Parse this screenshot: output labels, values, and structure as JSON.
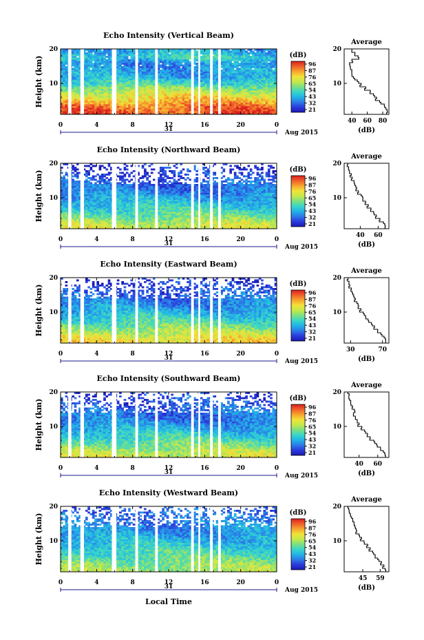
{
  "figure": {
    "xlabel": "Local Time",
    "date_label": "Aug 2015",
    "day_label": "31",
    "colorbar_unit": "(dB)",
    "colorbar_ticks": [
      "96",
      "87",
      "76",
      "65",
      "54",
      "43",
      "32",
      "21"
    ],
    "colormap": [
      "#1a1ab4",
      "#2a3bdc",
      "#2c7be6",
      "#22b3e8",
      "#39d6c8",
      "#7be082",
      "#c6e84a",
      "#f2e23a",
      "#f7a52e",
      "#f0602a",
      "#d91f20"
    ],
    "gap_color": "#ffffff"
  },
  "chart_data": [
    {
      "type": "heatmap",
      "title": "Echo Intensity (Vertical Beam)",
      "ylabel": "Height (km)",
      "xlim": [
        0,
        24
      ],
      "ylim": [
        1,
        20
      ],
      "xticks": [
        "0",
        "4",
        "8",
        "12",
        "16",
        "20",
        "0"
      ],
      "yticks": [
        "10",
        "20"
      ],
      "colorbar_range": [
        21,
        96
      ],
      "data_gaps_hours": [
        [
          0.85,
          1.2
        ],
        [
          2.2,
          2.6
        ],
        [
          5.7,
          6.2
        ],
        [
          8.3,
          8.6
        ],
        [
          10.5,
          10.8
        ],
        [
          14.5,
          14.8
        ],
        [
          15.3,
          15.5
        ],
        [
          16.6,
          16.9
        ],
        [
          17.5,
          17.8
        ]
      ],
      "profile": {
        "title": "Average",
        "xlabel": "(dB)",
        "xticks": [
          "40",
          "60",
          "80"
        ],
        "xlim": [
          30,
          88
        ],
        "ylim": [
          1,
          20
        ],
        "yticks": [
          "10",
          "20"
        ],
        "height_km": [
          1.5,
          2.5,
          3.5,
          4.5,
          5.5,
          6.5,
          7.5,
          8.5,
          9.5,
          10.5,
          11.5,
          12.5,
          13.5,
          14.5,
          15.5,
          16.5,
          17.5,
          18.5,
          19.5
        ],
        "intensity_db": [
          86,
          84,
          82,
          76,
          72,
          68,
          64,
          58,
          52,
          47,
          42,
          40,
          40,
          38,
          37,
          40,
          48,
          44,
          40
        ]
      }
    },
    {
      "type": "heatmap",
      "title": "Echo Intensity (Northward Beam)",
      "ylabel": "Height (km)",
      "xlim": [
        0,
        24
      ],
      "ylim": [
        1,
        20
      ],
      "xticks": [
        "0",
        "4",
        "8",
        "12",
        "16",
        "20",
        "0"
      ],
      "yticks": [
        "10",
        "20"
      ],
      "colorbar_range": [
        21,
        96
      ],
      "data_gaps_hours": [
        [
          0.85,
          1.2
        ],
        [
          2.2,
          2.6
        ],
        [
          5.7,
          6.2
        ],
        [
          8.3,
          8.6
        ],
        [
          10.5,
          10.8
        ],
        [
          14.5,
          14.8
        ],
        [
          15.3,
          15.5
        ],
        [
          16.6,
          16.9
        ],
        [
          17.5,
          17.8
        ]
      ],
      "profile": {
        "title": "Average",
        "xlabel": "(dB)",
        "xticks": [
          "40",
          "60"
        ],
        "xlim": [
          22,
          72
        ],
        "ylim": [
          1,
          20
        ],
        "yticks": [
          "10",
          "20"
        ],
        "height_km": [
          1.5,
          2.5,
          3.5,
          4.5,
          5.5,
          6.5,
          7.5,
          8.5,
          9.5,
          10.5,
          11.5,
          12.5,
          13.5,
          14.5,
          15.5,
          16.5,
          17.5,
          18.5,
          19.5
        ],
        "intensity_db": [
          68,
          66,
          62,
          58,
          55,
          52,
          49,
          46,
          43,
          41,
          38,
          36,
          34,
          33,
          31,
          30,
          28,
          27,
          26
        ]
      }
    },
    {
      "type": "heatmap",
      "title": "Echo Intensity (Eastward Beam)",
      "ylabel": "Height (km)",
      "xlim": [
        0,
        24
      ],
      "ylim": [
        1,
        20
      ],
      "xticks": [
        "0",
        "4",
        "8",
        "12",
        "16",
        "20",
        "0"
      ],
      "yticks": [
        "10",
        "20"
      ],
      "colorbar_range": [
        21,
        96
      ],
      "data_gaps_hours": [
        [
          0.85,
          1.2
        ],
        [
          2.2,
          2.6
        ],
        [
          5.7,
          6.2
        ],
        [
          8.3,
          8.6
        ],
        [
          10.5,
          10.8
        ],
        [
          14.5,
          14.8
        ],
        [
          15.3,
          15.5
        ],
        [
          16.6,
          16.9
        ],
        [
          17.5,
          17.8
        ]
      ],
      "profile": {
        "title": "Average",
        "xlabel": "(dB)",
        "xticks": [
          "30",
          "70"
        ],
        "xlim": [
          22,
          78
        ],
        "ylim": [
          1,
          20
        ],
        "yticks": [
          "10",
          "20"
        ],
        "height_km": [
          1.5,
          2.5,
          3.5,
          4.5,
          5.5,
          6.5,
          7.5,
          8.5,
          9.5,
          10.5,
          11.5,
          12.5,
          13.5,
          14.5,
          15.5,
          16.5,
          17.5,
          18.5,
          19.5
        ],
        "intensity_db": [
          74,
          72,
          68,
          64,
          60,
          56,
          52,
          49,
          46,
          43,
          40,
          38,
          36,
          34,
          32,
          31,
          29,
          28,
          27
        ]
      }
    },
    {
      "type": "heatmap",
      "title": "Echo Intensity (Southward Beam)",
      "ylabel": "Height (km)",
      "xlim": [
        0,
        24
      ],
      "ylim": [
        1,
        20
      ],
      "xticks": [
        "0",
        "4",
        "8",
        "12",
        "16",
        "20",
        "0"
      ],
      "yticks": [
        "10",
        "20"
      ],
      "colorbar_range": [
        21,
        96
      ],
      "data_gaps_hours": [
        [
          0.85,
          1.2
        ],
        [
          2.2,
          2.6
        ],
        [
          5.7,
          6.2
        ],
        [
          8.3,
          8.6
        ],
        [
          10.5,
          10.8
        ],
        [
          14.5,
          14.8
        ],
        [
          15.3,
          15.5
        ],
        [
          16.6,
          16.9
        ],
        [
          17.5,
          17.8
        ]
      ],
      "profile": {
        "title": "Average",
        "xlabel": "(dB)",
        "xticks": [
          "40",
          "60"
        ],
        "xlim": [
          24,
          72
        ],
        "ylim": [
          1,
          20
        ],
        "yticks": [
          "10",
          "20"
        ],
        "height_km": [
          1.5,
          2.5,
          3.5,
          4.5,
          5.5,
          6.5,
          7.5,
          8.5,
          9.5,
          10.5,
          11.5,
          12.5,
          13.5,
          14.5,
          15.5,
          16.5,
          17.5,
          18.5,
          19.5
        ],
        "intensity_db": [
          68,
          66,
          63,
          59,
          56,
          52,
          49,
          46,
          43,
          40,
          38,
          36,
          34,
          35,
          33,
          31,
          30,
          29,
          28
        ]
      }
    },
    {
      "type": "heatmap",
      "title": "Echo Intensity (Westward Beam)",
      "ylabel": "Height (km)",
      "xlim": [
        0,
        24
      ],
      "ylim": [
        1,
        20
      ],
      "xticks": [
        "0",
        "4",
        "8",
        "12",
        "16",
        "20",
        "0"
      ],
      "yticks": [
        "10",
        "20"
      ],
      "colorbar_range": [
        21,
        96
      ],
      "data_gaps_hours": [
        [
          0.85,
          1.2
        ],
        [
          2.2,
          2.6
        ],
        [
          5.7,
          6.2
        ],
        [
          8.3,
          8.6
        ],
        [
          10.5,
          10.8
        ],
        [
          14.5,
          14.8
        ],
        [
          15.3,
          15.5
        ],
        [
          16.6,
          16.9
        ],
        [
          17.5,
          17.8
        ]
      ],
      "profile": {
        "title": "Average",
        "xlabel": "(dB)",
        "xticks": [
          "45",
          "59"
        ],
        "xlim": [
          30,
          66
        ],
        "ylim": [
          1,
          20
        ],
        "yticks": [
          "10",
          "20"
        ],
        "height_km": [
          1.5,
          2.5,
          3.5,
          4.5,
          5.5,
          6.5,
          7.5,
          8.5,
          9.5,
          10.5,
          11.5,
          12.5,
          13.5,
          14.5,
          15.5,
          16.5,
          17.5,
          18.5,
          19.5
        ],
        "intensity_db": [
          63,
          62,
          60,
          57,
          55,
          53,
          51,
          49,
          46,
          44,
          42,
          40,
          39,
          38,
          37,
          36,
          35,
          34,
          33
        ]
      }
    }
  ]
}
